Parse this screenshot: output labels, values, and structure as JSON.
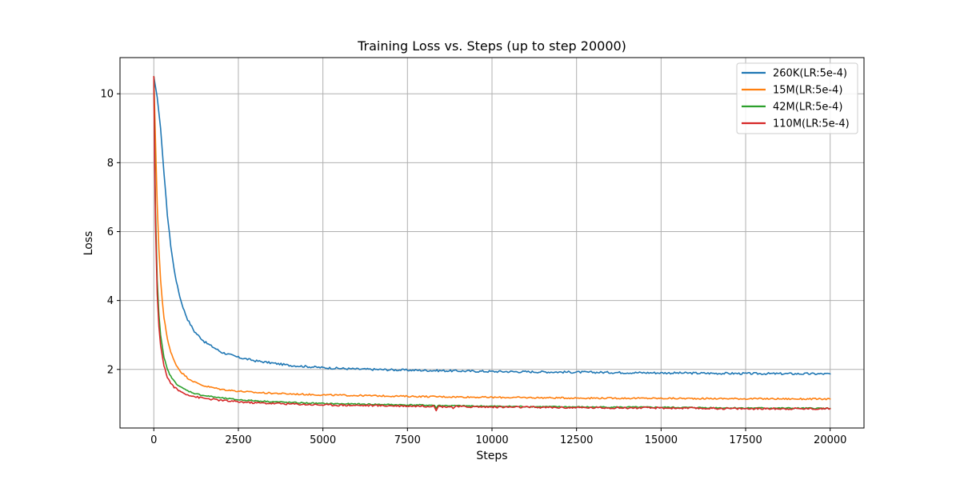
{
  "chart_data": {
    "type": "line",
    "title": "Training Loss vs. Steps (up to step 20000)",
    "xlabel": "Steps",
    "ylabel": "Loss",
    "xlim": [
      -1000,
      21000
    ],
    "ylim": [
      0.3,
      11.05
    ],
    "xticks": [
      0,
      2500,
      5000,
      7500,
      10000,
      12500,
      15000,
      17500,
      20000
    ],
    "yticks": [
      2,
      4,
      6,
      8,
      10
    ],
    "grid": true,
    "legend_position": "top-right",
    "series": [
      {
        "name": "260K(LR:5e-4)",
        "color": "#1f77b4",
        "x": [
          0,
          100,
          200,
          300,
          400,
          500,
          600,
          700,
          800,
          900,
          1000,
          1200,
          1500,
          2000,
          2500,
          3000,
          4000,
          5000,
          6000,
          7500,
          10000,
          12500,
          15000,
          17500,
          20000
        ],
        "y": [
          10.5,
          9.9,
          9.0,
          7.7,
          6.5,
          5.6,
          4.9,
          4.4,
          4.0,
          3.7,
          3.45,
          3.1,
          2.8,
          2.5,
          2.35,
          2.25,
          2.12,
          2.05,
          2.01,
          1.98,
          1.94,
          1.92,
          1.9,
          1.88,
          1.87
        ]
      },
      {
        "name": "15M(LR:5e-4)",
        "color": "#ff7f0e",
        "x": [
          0,
          50,
          100,
          150,
          200,
          250,
          300,
          400,
          500,
          600,
          700,
          800,
          1000,
          1250,
          1500,
          2000,
          2500,
          3000,
          4000,
          5000,
          7500,
          10000,
          12500,
          15000,
          17500,
          20000
        ],
        "y": [
          10.5,
          8.6,
          6.8,
          5.5,
          4.6,
          4.0,
          3.5,
          2.9,
          2.5,
          2.25,
          2.07,
          1.93,
          1.75,
          1.61,
          1.52,
          1.42,
          1.37,
          1.33,
          1.29,
          1.26,
          1.22,
          1.19,
          1.17,
          1.16,
          1.15,
          1.14
        ]
      },
      {
        "name": "42M(LR:5e-4)",
        "color": "#2ca02c",
        "x": [
          0,
          25,
          50,
          100,
          150,
          200,
          300,
          400,
          500,
          600,
          700,
          800,
          1000,
          1250,
          1500,
          2000,
          2500,
          3000,
          4000,
          5000,
          7500,
          8300,
          8350,
          8400,
          8500,
          10000,
          12500,
          15000,
          17500,
          20000
        ],
        "y": [
          10.5,
          8.5,
          6.6,
          4.6,
          3.6,
          3.0,
          2.35,
          2.0,
          1.8,
          1.66,
          1.56,
          1.48,
          1.38,
          1.29,
          1.24,
          1.17,
          1.12,
          1.09,
          1.04,
          1.01,
          0.97,
          0.96,
          0.86,
          0.96,
          0.95,
          0.93,
          0.91,
          0.9,
          0.88,
          0.87
        ]
      },
      {
        "name": "110M(LR:5e-4)",
        "color": "#d62728",
        "x": [
          0,
          25,
          50,
          100,
          150,
          200,
          300,
          400,
          500,
          600,
          700,
          800,
          1000,
          1250,
          1500,
          2000,
          2500,
          3000,
          4000,
          5000,
          7500,
          8300,
          8350,
          8400,
          8500,
          8800,
          8850,
          8900,
          10000,
          12500,
          15000,
          17500,
          20000
        ],
        "y": [
          10.5,
          8.0,
          6.2,
          4.2,
          3.25,
          2.7,
          2.1,
          1.78,
          1.6,
          1.49,
          1.41,
          1.35,
          1.27,
          1.2,
          1.16,
          1.1,
          1.06,
          1.03,
          1.0,
          0.97,
          0.94,
          0.93,
          0.82,
          0.93,
          0.92,
          0.92,
          0.87,
          0.92,
          0.91,
          0.89,
          0.88,
          0.86,
          0.86
        ]
      }
    ]
  }
}
